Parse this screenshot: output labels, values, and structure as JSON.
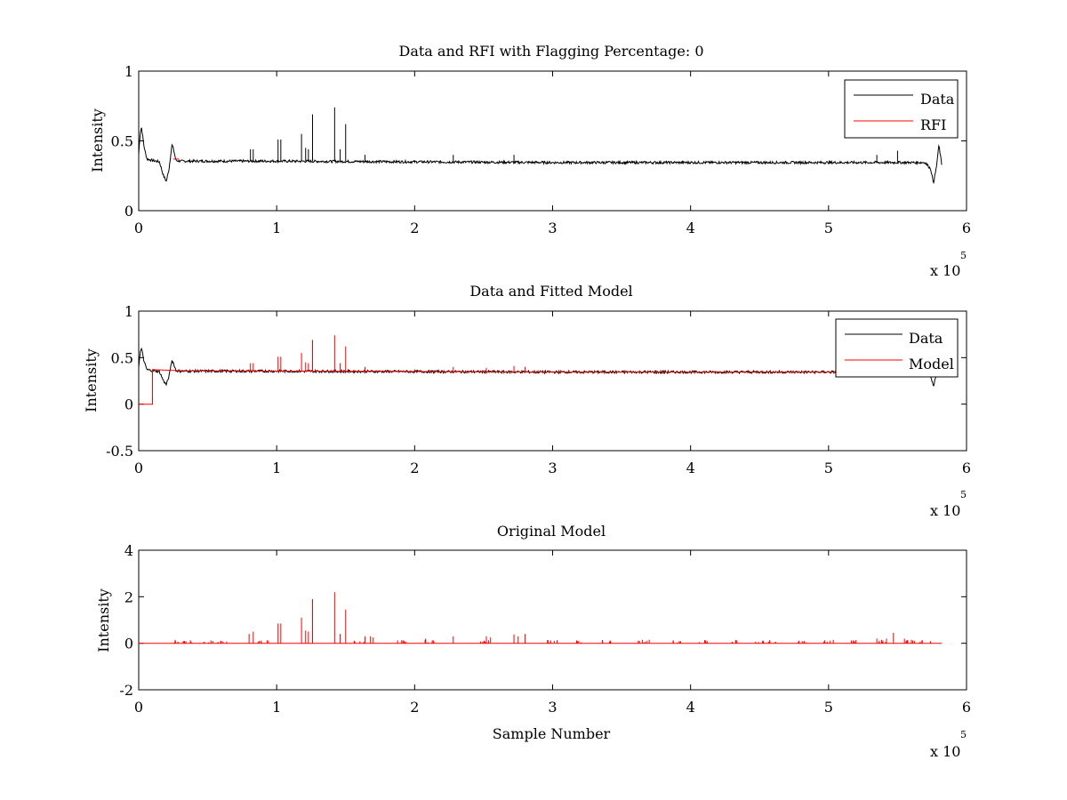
{
  "colors": {
    "data": "#000000",
    "rfi": "#ff0000",
    "model": "#ff0000",
    "background": "#ffffff"
  },
  "chart_data": [
    {
      "type": "line",
      "title": "Data and RFI with Flagging Percentage: 0",
      "xlabel": "",
      "ylabel": "Intensity",
      "xlim": [
        0,
        6
      ],
      "ylim": [
        0,
        1
      ],
      "xticks": [
        "0",
        "1",
        "2",
        "3",
        "4",
        "5",
        "6"
      ],
      "yticks": [
        "0",
        "0.5",
        "1"
      ],
      "xticks_values": [
        0,
        1,
        2,
        3,
        4,
        5,
        6
      ],
      "yticks_values": [
        0,
        0.5,
        1
      ],
      "x_multiplier": {
        "base": "x 10",
        "exponent": "5"
      },
      "legend": {
        "placement": "top-right",
        "entries": [
          {
            "name": "Data",
            "color": "#000000"
          },
          {
            "name": "RFI",
            "color": "#ff0000"
          }
        ]
      },
      "series": [
        {
          "name": "Data",
          "color": "#000000",
          "baseline": 0.355,
          "x": [
            0,
            0.01,
            0.02,
            0.04,
            0.06,
            0.1,
            0.15,
            0.18,
            0.2,
            0.22,
            0.24,
            0.25,
            0.27,
            0.3,
            0.5,
            1,
            2,
            3,
            4,
            5,
            5.7,
            5.74,
            5.76,
            5.78,
            5.8,
            5.82
          ],
          "y": [
            0.4,
            0.55,
            0.6,
            0.45,
            0.37,
            0.36,
            0.35,
            0.25,
            0.21,
            0.3,
            0.47,
            0.45,
            0.36,
            0.355,
            0.355,
            0.355,
            0.35,
            0.345,
            0.345,
            0.345,
            0.345,
            0.3,
            0.2,
            0.3,
            0.47,
            0.33
          ],
          "spikes": [
            {
              "x": 0.81,
              "y": 0.44
            },
            {
              "x": 0.83,
              "y": 0.44
            },
            {
              "x": 1.01,
              "y": 0.51
            },
            {
              "x": 1.03,
              "y": 0.51
            },
            {
              "x": 1.18,
              "y": 0.55
            },
            {
              "x": 1.21,
              "y": 0.45
            },
            {
              "x": 1.23,
              "y": 0.44
            },
            {
              "x": 1.26,
              "y": 0.69
            },
            {
              "x": 1.42,
              "y": 0.74
            },
            {
              "x": 1.46,
              "y": 0.44
            },
            {
              "x": 1.5,
              "y": 0.62
            },
            {
              "x": 1.64,
              "y": 0.4
            },
            {
              "x": 2.28,
              "y": 0.4
            },
            {
              "x": 2.72,
              "y": 0.4
            },
            {
              "x": 5.35,
              "y": 0.4
            },
            {
              "x": 5.5,
              "y": 0.43
            }
          ]
        },
        {
          "name": "RFI",
          "color": "#ff0000",
          "x": [
            0.25,
            0.29
          ],
          "y": [
            0.37,
            0.37
          ]
        }
      ]
    },
    {
      "type": "line",
      "title": "Data and Fitted Model",
      "xlabel": "",
      "ylabel": "Intensity",
      "xlim": [
        0,
        6
      ],
      "ylim": [
        -0.5,
        1
      ],
      "xticks": [
        "0",
        "1",
        "2",
        "3",
        "4",
        "5",
        "6"
      ],
      "yticks": [
        "-0.5",
        "0",
        "0.5",
        "1"
      ],
      "xticks_values": [
        0,
        1,
        2,
        3,
        4,
        5,
        6
      ],
      "yticks_values": [
        -0.5,
        0,
        0.5,
        1
      ],
      "x_multiplier": {
        "base": "x 10",
        "exponent": "5"
      },
      "legend": {
        "placement": "top-right",
        "entries": [
          {
            "name": "Data",
            "color": "#000000"
          },
          {
            "name": "Model",
            "color": "#ff0000"
          }
        ]
      },
      "series": [
        {
          "name": "Data",
          "color": "#000000",
          "x": [
            0,
            0.01,
            0.02,
            0.04,
            0.06,
            0.1,
            0.15,
            0.18,
            0.2,
            0.22,
            0.24,
            0.25,
            0.27,
            0.3,
            0.5,
            1,
            2,
            3,
            4,
            5,
            5.7,
            5.74,
            5.76,
            5.78,
            5.8,
            5.82
          ],
          "y": [
            0.4,
            0.55,
            0.6,
            0.45,
            0.37,
            0.36,
            0.35,
            0.25,
            0.21,
            0.3,
            0.47,
            0.45,
            0.36,
            0.355,
            0.355,
            0.355,
            0.35,
            0.345,
            0.345,
            0.345,
            0.345,
            0.3,
            0.2,
            0.3,
            0.47,
            0.33
          ]
        },
        {
          "name": "Model",
          "color": "#ff0000",
          "x": [
            0,
            0.1,
            0.1,
            0.11,
            0.3,
            1,
            2,
            3,
            4,
            5,
            5.82
          ],
          "y": [
            0,
            0,
            0.37,
            0.37,
            0.36,
            0.355,
            0.35,
            0.345,
            0.345,
            0.345,
            0.345
          ],
          "spikes": [
            {
              "x": 0.81,
              "y": 0.44
            },
            {
              "x": 0.83,
              "y": 0.44
            },
            {
              "x": 1.01,
              "y": 0.51
            },
            {
              "x": 1.03,
              "y": 0.51
            },
            {
              "x": 1.18,
              "y": 0.55
            },
            {
              "x": 1.21,
              "y": 0.45
            },
            {
              "x": 1.23,
              "y": 0.44
            },
            {
              "x": 1.26,
              "y": 0.69
            },
            {
              "x": 1.42,
              "y": 0.74
            },
            {
              "x": 1.46,
              "y": 0.44
            },
            {
              "x": 1.5,
              "y": 0.62
            },
            {
              "x": 1.64,
              "y": 0.4
            },
            {
              "x": 2.28,
              "y": 0.4
            },
            {
              "x": 2.52,
              "y": 0.39
            },
            {
              "x": 2.72,
              "y": 0.41
            },
            {
              "x": 2.8,
              "y": 0.4
            }
          ]
        }
      ]
    },
    {
      "type": "line",
      "title": "Original Model",
      "xlabel": "Sample Number",
      "ylabel": "Intensity",
      "xlim": [
        0,
        6
      ],
      "ylim": [
        -2,
        4
      ],
      "xticks": [
        "0",
        "1",
        "2",
        "3",
        "4",
        "5",
        "6"
      ],
      "yticks": [
        "-2",
        "0",
        "2",
        "4"
      ],
      "xticks_values": [
        0,
        1,
        2,
        3,
        4,
        5,
        6
      ],
      "yticks_values": [
        -2,
        0,
        2,
        4
      ],
      "x_multiplier": {
        "base": "x 10",
        "exponent": "5"
      },
      "series": [
        {
          "name": "Model",
          "color": "#ff0000",
          "x": [
            0,
            5.82
          ],
          "y": [
            0,
            0
          ],
          "spikes": [
            {
              "x": 0.8,
              "y": 0.4
            },
            {
              "x": 0.83,
              "y": 0.5
            },
            {
              "x": 1.01,
              "y": 0.85
            },
            {
              "x": 1.03,
              "y": 0.85
            },
            {
              "x": 1.18,
              "y": 1.1
            },
            {
              "x": 1.21,
              "y": 0.55
            },
            {
              "x": 1.23,
              "y": 0.5
            },
            {
              "x": 1.26,
              "y": 1.9
            },
            {
              "x": 1.42,
              "y": 2.2
            },
            {
              "x": 1.46,
              "y": 0.4
            },
            {
              "x": 1.5,
              "y": 1.45
            },
            {
              "x": 1.64,
              "y": 0.3
            },
            {
              "x": 1.68,
              "y": 0.3
            },
            {
              "x": 1.7,
              "y": 0.25
            },
            {
              "x": 2.08,
              "y": 0.2
            },
            {
              "x": 2.28,
              "y": 0.3
            },
            {
              "x": 2.52,
              "y": 0.3
            },
            {
              "x": 2.55,
              "y": 0.25
            },
            {
              "x": 2.72,
              "y": 0.38
            },
            {
              "x": 2.75,
              "y": 0.3
            },
            {
              "x": 2.8,
              "y": 0.4
            },
            {
              "x": 3.65,
              "y": 0.15
            },
            {
              "x": 3.7,
              "y": 0.15
            },
            {
              "x": 5.35,
              "y": 0.2
            },
            {
              "x": 5.42,
              "y": 0.2
            },
            {
              "x": 5.47,
              "y": 0.45
            },
            {
              "x": 5.55,
              "y": 0.2
            },
            {
              "x": 5.6,
              "y": 0.15
            }
          ],
          "noise_clusters": [
            0.3,
            0.35,
            0.5,
            0.6,
            0.9,
            1.6,
            1.9,
            2.1,
            2.5,
            3.0,
            3.2,
            3.4,
            3.65,
            3.9,
            4.1,
            4.3,
            4.5,
            4.6,
            4.8,
            5.0,
            5.2,
            5.4,
            5.6,
            5.7
          ]
        }
      ]
    }
  ]
}
